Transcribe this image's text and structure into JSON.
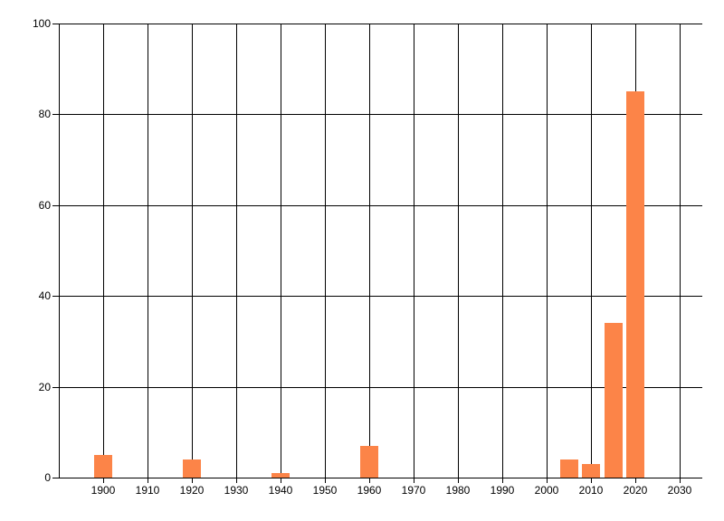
{
  "chart_data": {
    "type": "bar",
    "title": "",
    "xlabel": "",
    "ylabel": "",
    "points": [
      {
        "x": 1900,
        "y": 5
      },
      {
        "x": 1920,
        "y": 4
      },
      {
        "x": 1940,
        "y": 1
      },
      {
        "x": 1960,
        "y": 7
      },
      {
        "x": 2005,
        "y": 4
      },
      {
        "x": 2010,
        "y": 3
      },
      {
        "x": 2015,
        "y": 34
      },
      {
        "x": 2020,
        "y": 85
      }
    ],
    "bar_width_x_units": 4,
    "xlim": [
      1890,
      2035
    ],
    "ylim": [
      0,
      100
    ],
    "x_ticks": [
      "1900",
      "1910",
      "1920",
      "1930",
      "1940",
      "1950",
      "1960",
      "1970",
      "1980",
      "1990",
      "2000",
      "2010",
      "2020",
      "2030"
    ],
    "y_ticks": [
      "0",
      "20",
      "40",
      "60",
      "80",
      "100"
    ],
    "grid": true,
    "legend": false,
    "colors": {
      "bar": "#FC8448",
      "axis": "#000000",
      "grid": "#000000",
      "label": "#000000",
      "background": "#FFFFFF"
    }
  }
}
